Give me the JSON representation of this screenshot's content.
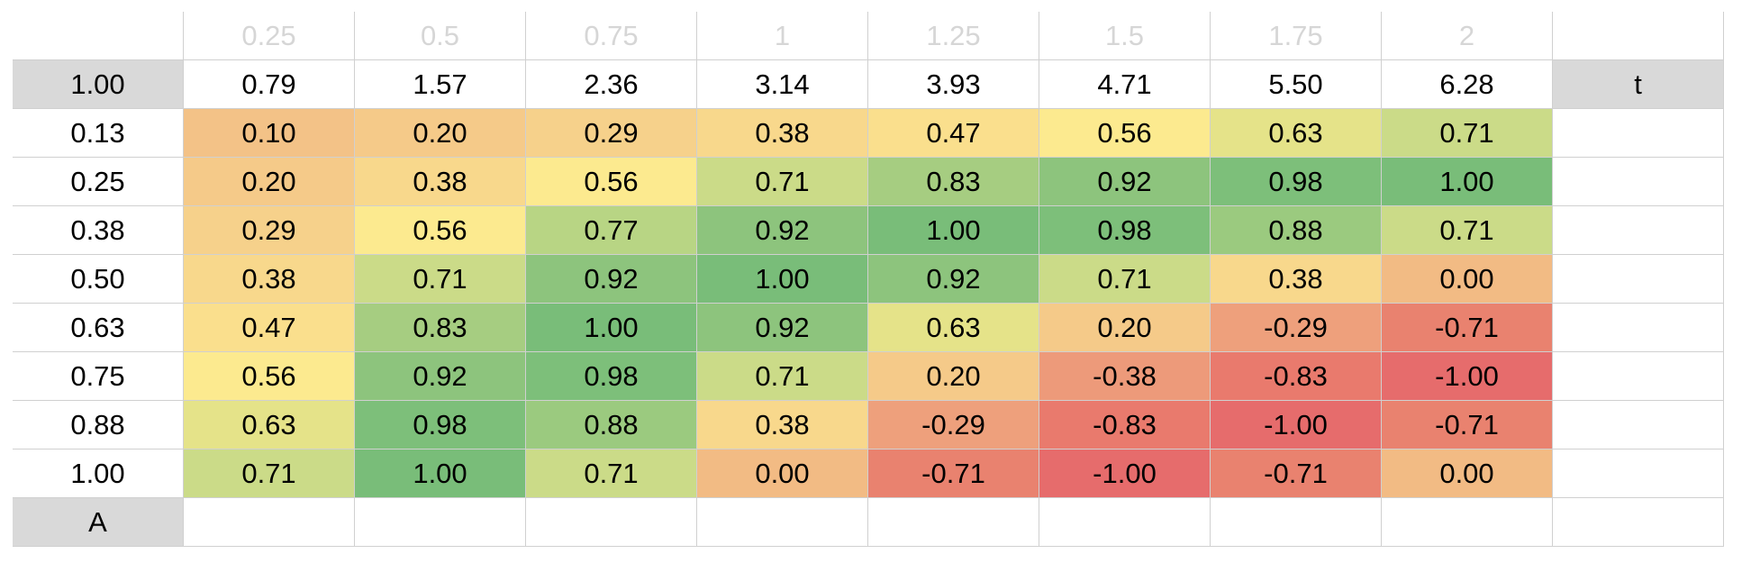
{
  "top_row": [
    "0.25",
    "0.5",
    "0.75",
    "1",
    "1.25",
    "1.5",
    "1.75",
    "2"
  ],
  "t_row": {
    "corner": "1.00",
    "values": [
      "0.79",
      "1.57",
      "2.36",
      "3.14",
      "3.93",
      "4.71",
      "5.50",
      "6.28"
    ],
    "label": "t"
  },
  "rows": [
    {
      "label": "0.13",
      "values": [
        "0.10",
        "0.20",
        "0.29",
        "0.38",
        "0.47",
        "0.56",
        "0.63",
        "0.71"
      ],
      "colors": [
        "#f3c287",
        "#f5ca89",
        "#f6d18b",
        "#f8d88c",
        "#fadf8d",
        "#fcea8f",
        "#e5e389",
        "#cbdb88"
      ]
    },
    {
      "label": "0.25",
      "values": [
        "0.20",
        "0.38",
        "0.56",
        "0.71",
        "0.83",
        "0.92",
        "0.98",
        "1.00"
      ],
      "colors": [
        "#f5ca89",
        "#f8d88c",
        "#fcea8f",
        "#cbdb88",
        "#a6cd81",
        "#8dc47d",
        "#7dbf7a",
        "#79bd79"
      ]
    },
    {
      "label": "0.38",
      "values": [
        "0.29",
        "0.56",
        "0.77",
        "0.92",
        "1.00",
        "0.98",
        "0.88",
        "0.71"
      ],
      "colors": [
        "#f6d18b",
        "#fcea8f",
        "#b8d584",
        "#8dc47d",
        "#79bd79",
        "#7dbf7a",
        "#9bca7f",
        "#cbdb88"
      ]
    },
    {
      "label": "0.50",
      "values": [
        "0.38",
        "0.71",
        "0.92",
        "1.00",
        "0.92",
        "0.71",
        "0.38",
        "0.00"
      ],
      "colors": [
        "#f8d88c",
        "#cbdb88",
        "#8dc47d",
        "#79bd79",
        "#8dc47d",
        "#cbdb88",
        "#f8d88c",
        "#f2bb84"
      ]
    },
    {
      "label": "0.63",
      "values": [
        "0.47",
        "0.83",
        "1.00",
        "0.92",
        "0.63",
        "0.20",
        "-0.29",
        "-0.71"
      ],
      "colors": [
        "#fadf8d",
        "#a6cd81",
        "#79bd79",
        "#8dc47d",
        "#e5e389",
        "#f5ca89",
        "#eea07c",
        "#e9826f"
      ]
    },
    {
      "label": "0.75",
      "values": [
        "0.56",
        "0.92",
        "0.98",
        "0.71",
        "0.20",
        "-0.38",
        "-0.83",
        "-1.00"
      ],
      "colors": [
        "#fcea8f",
        "#8dc47d",
        "#7dbf7a",
        "#cbdb88",
        "#f5ca89",
        "#ed9a7a",
        "#e97a6d",
        "#e66c6c"
      ]
    },
    {
      "label": "0.88",
      "values": [
        "0.63",
        "0.98",
        "0.88",
        "0.38",
        "-0.29",
        "-0.83",
        "-1.00",
        "-0.71"
      ],
      "colors": [
        "#e5e389",
        "#7dbf7a",
        "#9bca7f",
        "#f8d88c",
        "#eea07c",
        "#e97a6d",
        "#e66c6c",
        "#e9826f"
      ]
    },
    {
      "label": "1.00",
      "values": [
        "0.71",
        "1.00",
        "0.71",
        "0.00",
        "-0.71",
        "-1.00",
        "-0.71",
        "0.00"
      ],
      "colors": [
        "#cbdb88",
        "#79bd79",
        "#cbdb88",
        "#f2bb84",
        "#e9826f",
        "#e66c6c",
        "#e9826f",
        "#f2bb84"
      ]
    }
  ],
  "a_label": "A"
}
